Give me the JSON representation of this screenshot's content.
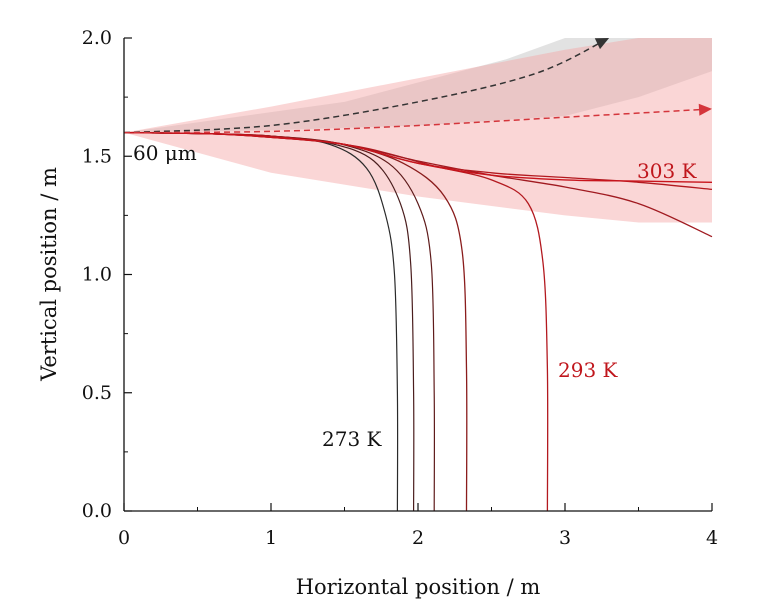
{
  "chart_data": {
    "type": "line",
    "title": "",
    "xlabel": "Horizontal position / m",
    "ylabel": "Vertical position / m",
    "xlim": [
      0,
      4
    ],
    "ylim": [
      0,
      2
    ],
    "x_ticks": [
      "0",
      "1",
      "2",
      "3",
      "4"
    ],
    "y_ticks": [
      "0.0",
      "0.5",
      "1.0",
      "1.5",
      "2.0"
    ],
    "grid": false,
    "legend": "none",
    "annotations": {
      "size_label": "60 μm",
      "cold_label": "273 K",
      "mid_label": "293 K",
      "hot_label": "303 K"
    },
    "colors": {
      "cold": "#222222",
      "hot": "#c0161c",
      "band_grey": "#d4d4d4",
      "band_red": "#f8c7c7",
      "band_overlap": "#d9b4b4"
    },
    "bands": [
      {
        "name": "",
        "color": "#cfcfcf",
        "opacity": 0.6,
        "upper": [
          [
            0,
            1.6
          ],
          [
            1.5,
            1.73
          ],
          [
            2.6,
            1.91
          ],
          [
            3.0,
            2.0
          ],
          [
            4.0,
            2.0
          ]
        ],
        "lower": [
          [
            4.0,
            1.86
          ],
          [
            3.5,
            1.75
          ],
          [
            3.0,
            1.67
          ],
          [
            2.0,
            1.63
          ],
          [
            1.0,
            1.61
          ],
          [
            0,
            1.6
          ]
        ]
      },
      {
        "name": "",
        "color": "#f5a3a3",
        "opacity": 0.45,
        "upper": [
          [
            0,
            1.6
          ],
          [
            1.0,
            1.71
          ],
          [
            2.0,
            1.83
          ],
          [
            3.0,
            1.95
          ],
          [
            3.5,
            2.0
          ],
          [
            4.0,
            2.0
          ]
        ],
        "lower": [
          [
            4.0,
            1.22
          ],
          [
            3.5,
            1.22
          ],
          [
            3.0,
            1.25
          ],
          [
            2.0,
            1.33
          ],
          [
            1.0,
            1.43
          ],
          [
            0,
            1.6
          ]
        ]
      }
    ],
    "series": [
      {
        "color": "#2a2a2a",
        "width": 1.2,
        "points": [
          [
            0,
            1.6
          ],
          [
            0.6,
            1.595
          ],
          [
            1.0,
            1.585
          ],
          [
            1.4,
            1.55
          ],
          [
            1.65,
            1.45
          ],
          [
            1.78,
            1.25
          ],
          [
            1.84,
            1.0
          ],
          [
            1.86,
            0.5
          ],
          [
            1.86,
            0.0
          ]
        ]
      },
      {
        "color": "#4a1d1d",
        "width": 1.2,
        "points": [
          [
            0,
            1.6
          ],
          [
            0.6,
            1.595
          ],
          [
            1.0,
            1.585
          ],
          [
            1.4,
            1.555
          ],
          [
            1.7,
            1.48
          ],
          [
            1.88,
            1.3
          ],
          [
            1.95,
            1.05
          ],
          [
            1.97,
            0.5
          ],
          [
            1.97,
            0.0
          ]
        ]
      },
      {
        "color": "#5e1a1a",
        "width": 1.2,
        "points": [
          [
            0,
            1.6
          ],
          [
            0.6,
            1.595
          ],
          [
            1.0,
            1.585
          ],
          [
            1.45,
            1.555
          ],
          [
            1.8,
            1.47
          ],
          [
            2.0,
            1.3
          ],
          [
            2.09,
            1.05
          ],
          [
            2.11,
            0.5
          ],
          [
            2.11,
            0.0
          ]
        ]
      },
      {
        "color": "#8a1c1c",
        "width": 1.3,
        "points": [
          [
            0,
            1.6
          ],
          [
            0.6,
            1.595
          ],
          [
            1.0,
            1.585
          ],
          [
            1.5,
            1.55
          ],
          [
            1.9,
            1.47
          ],
          [
            2.18,
            1.33
          ],
          [
            2.3,
            1.1
          ],
          [
            2.33,
            0.6
          ],
          [
            2.33,
            0.0
          ]
        ]
      },
      {
        "color": "#b3191f",
        "width": 1.3,
        "points": [
          [
            0,
            1.6
          ],
          [
            0.6,
            1.595
          ],
          [
            1.0,
            1.585
          ],
          [
            1.6,
            1.54
          ],
          [
            2.1,
            1.46
          ],
          [
            2.5,
            1.4
          ],
          [
            2.75,
            1.3
          ],
          [
            2.85,
            1.05
          ],
          [
            2.88,
            0.6
          ],
          [
            2.88,
            0.0
          ]
        ]
      },
      {
        "color": "#a01a20",
        "width": 1.3,
        "points": [
          [
            0,
            1.6
          ],
          [
            0.6,
            1.595
          ],
          [
            1.0,
            1.58
          ],
          [
            1.5,
            1.55
          ],
          [
            2.0,
            1.48
          ],
          [
            2.5,
            1.42
          ],
          [
            3.0,
            1.37
          ],
          [
            3.5,
            1.3
          ],
          [
            4.0,
            1.16
          ]
        ]
      },
      {
        "color": "#b3191f",
        "width": 1.3,
        "points": [
          [
            0,
            1.6
          ],
          [
            0.6,
            1.595
          ],
          [
            1.0,
            1.58
          ],
          [
            1.5,
            1.55
          ],
          [
            2.0,
            1.47
          ],
          [
            2.5,
            1.43
          ],
          [
            3.0,
            1.41
          ],
          [
            3.5,
            1.39
          ],
          [
            4.0,
            1.36
          ]
        ]
      },
      {
        "color": "#c8141c",
        "width": 1.4,
        "points": [
          [
            0,
            1.6
          ],
          [
            0.6,
            1.595
          ],
          [
            1.0,
            1.58
          ],
          [
            1.5,
            1.55
          ],
          [
            2.0,
            1.47
          ],
          [
            2.5,
            1.42
          ],
          [
            3.0,
            1.4
          ],
          [
            3.5,
            1.395
          ],
          [
            4.0,
            1.39
          ]
        ]
      }
    ],
    "arrows": [
      {
        "color": "#333333",
        "points": [
          [
            0,
            1.6
          ],
          [
            1.0,
            1.63
          ],
          [
            2.0,
            1.73
          ],
          [
            2.8,
            1.85
          ],
          [
            3.3,
            2.0
          ]
        ]
      },
      {
        "color": "#d4353b",
        "points": [
          [
            0,
            1.6
          ],
          [
            1.0,
            1.605
          ],
          [
            2.0,
            1.63
          ],
          [
            3.0,
            1.665
          ],
          [
            4.0,
            1.7
          ]
        ]
      }
    ]
  }
}
